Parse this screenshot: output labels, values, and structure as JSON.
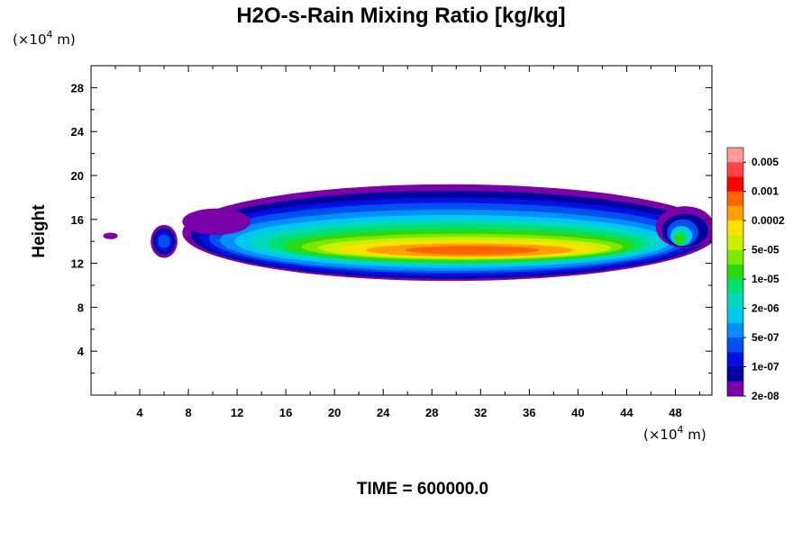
{
  "chart_data": {
    "type": "heatmap",
    "title": "H2O-s-Rain Mixing Ratio [kg/kg]",
    "xlabel": "",
    "ylabel": "Height",
    "x_unit_prefix": "(×10",
    "x_unit_exp": "4",
    "x_unit_suffix": " m)",
    "y_unit_prefix": "(×10",
    "y_unit_exp": "4",
    "y_unit_suffix": " m)",
    "xlim": [
      0,
      51
    ],
    "ylim": [
      0,
      30
    ],
    "x_ticks": [
      4,
      8,
      12,
      16,
      20,
      24,
      28,
      32,
      36,
      40,
      44,
      48
    ],
    "y_ticks": [
      4,
      8,
      12,
      16,
      20,
      24,
      28
    ],
    "colorbar": {
      "labels": [
        "0.005",
        "0.001",
        "0.0002",
        "5e-05",
        "1e-05",
        "2e-06",
        "5e-07",
        "1e-07",
        "2e-08"
      ],
      "colors": [
        "#ff9b9b",
        "#ff4545",
        "#ff0000",
        "#ff6400",
        "#ffa000",
        "#ffe000",
        "#c8f000",
        "#7ce800",
        "#2cd810",
        "#00e070",
        "#00d8c0",
        "#00c8f0",
        "#0090f8",
        "#0050f0",
        "#0010e0",
        "#0000a0",
        "#7a00a8"
      ]
    },
    "layers": [
      {
        "level_index": 0,
        "cx": 29.5,
        "cy": 14.8,
        "rx": 22.0,
        "ry": 4.4
      },
      {
        "level_index": 1,
        "cx": 29.5,
        "cy": 14.6,
        "rx": 21.3,
        "ry": 4.0
      },
      {
        "level_index": 2,
        "cx": 29.5,
        "cy": 14.4,
        "rx": 20.6,
        "ry": 3.6
      },
      {
        "level_index": 3,
        "cx": 29.5,
        "cy": 14.3,
        "rx": 19.8,
        "ry": 3.2
      },
      {
        "level_index": 4,
        "cx": 29.5,
        "cy": 14.1,
        "rx": 18.9,
        "ry": 2.8
      },
      {
        "level_index": 5,
        "cx": 29.7,
        "cy": 14.0,
        "rx": 17.9,
        "ry": 2.4
      },
      {
        "level_index": 6,
        "cx": 29.9,
        "cy": 13.9,
        "rx": 16.8,
        "ry": 2.1
      },
      {
        "level_index": 7,
        "cx": 30.1,
        "cy": 13.8,
        "rx": 15.6,
        "ry": 1.8
      },
      {
        "level_index": 8,
        "cx": 30.3,
        "cy": 13.6,
        "rx": 14.4,
        "ry": 1.5
      },
      {
        "level_index": 9,
        "cx": 30.5,
        "cy": 13.5,
        "rx": 13.2,
        "ry": 1.2
      },
      {
        "level_index": 10,
        "cx": 30.7,
        "cy": 13.4,
        "rx": 12.0,
        "ry": 1.0
      },
      {
        "level_index": 11,
        "cx": 30.9,
        "cy": 13.3,
        "rx": 10.5,
        "ry": 0.8
      },
      {
        "level_index": 12,
        "cx": 31.1,
        "cy": 13.2,
        "rx": 8.5,
        "ry": 0.6
      },
      {
        "level_index": 13,
        "cx": 31.3,
        "cy": 13.2,
        "rx": 5.5,
        "ry": 0.4
      }
    ],
    "cells": [
      {
        "level_index": 0,
        "cx": 6.0,
        "cy": 14.0,
        "rx": 1.1,
        "ry": 1.5
      },
      {
        "level_index": 1,
        "cx": 6.0,
        "cy": 14.0,
        "rx": 0.9,
        "ry": 1.2
      },
      {
        "level_index": 2,
        "cx": 6.0,
        "cy": 14.0,
        "rx": 0.7,
        "ry": 0.9
      },
      {
        "level_index": 3,
        "cx": 6.0,
        "cy": 14.0,
        "rx": 0.5,
        "ry": 0.6
      },
      {
        "level_index": 0,
        "cx": 48.8,
        "cy": 15.3,
        "rx": 2.4,
        "ry": 1.9
      },
      {
        "level_index": 1,
        "cx": 48.8,
        "cy": 15.0,
        "rx": 1.9,
        "ry": 1.5
      },
      {
        "level_index": 3,
        "cx": 48.6,
        "cy": 14.8,
        "rx": 1.3,
        "ry": 1.2
      },
      {
        "level_index": 5,
        "cx": 48.5,
        "cy": 14.5,
        "rx": 0.9,
        "ry": 0.9
      },
      {
        "level_index": 7,
        "cx": 48.4,
        "cy": 14.3,
        "rx": 0.6,
        "ry": 0.7
      },
      {
        "level_index": 8,
        "cx": 48.3,
        "cy": 14.2,
        "rx": 0.35,
        "ry": 0.45
      },
      {
        "level_index": 0,
        "cx": 1.6,
        "cy": 14.5,
        "rx": 0.6,
        "ry": 0.3
      },
      {
        "level_index": 0,
        "cx": 10.3,
        "cy": 15.8,
        "rx": 2.8,
        "ry": 1.2
      }
    ],
    "time_label": "TIME = 600000.0"
  }
}
